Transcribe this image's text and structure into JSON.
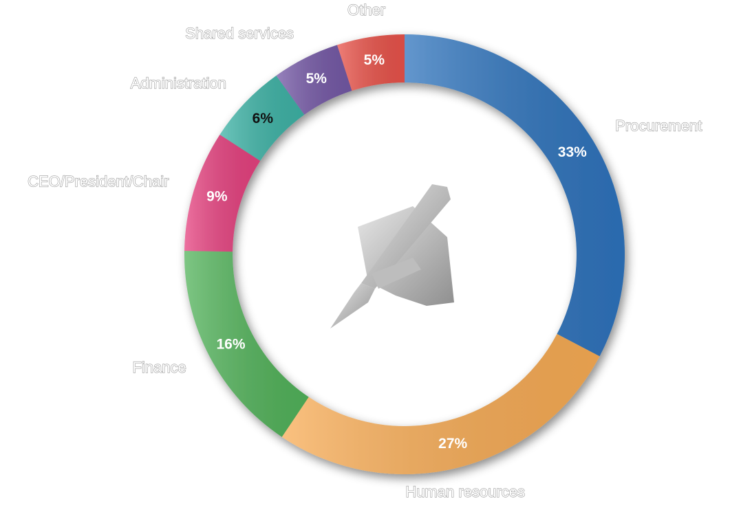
{
  "chart_data": {
    "type": "donut",
    "categories": [
      "Procurement",
      "Human resources",
      "Finance",
      "CEO/President/Chair",
      "Administration",
      "Shared services",
      "Other"
    ],
    "values": [
      33,
      27,
      16,
      9,
      6,
      5,
      5
    ],
    "value_labels": [
      "33%",
      "27%",
      "16%",
      "9%",
      "6%",
      "5%",
      "5%"
    ],
    "colors": [
      "#2f74bd",
      "#f8ac55",
      "#52b35a",
      "#e6417f",
      "#3db3a6",
      "#7458a6",
      "#e9534a"
    ],
    "value_label_colors": [
      "#ffffff",
      "#ffffff",
      "#ffffff",
      "#ffffff",
      "#111111",
      "#ffffff",
      "#ffffff"
    ]
  }
}
